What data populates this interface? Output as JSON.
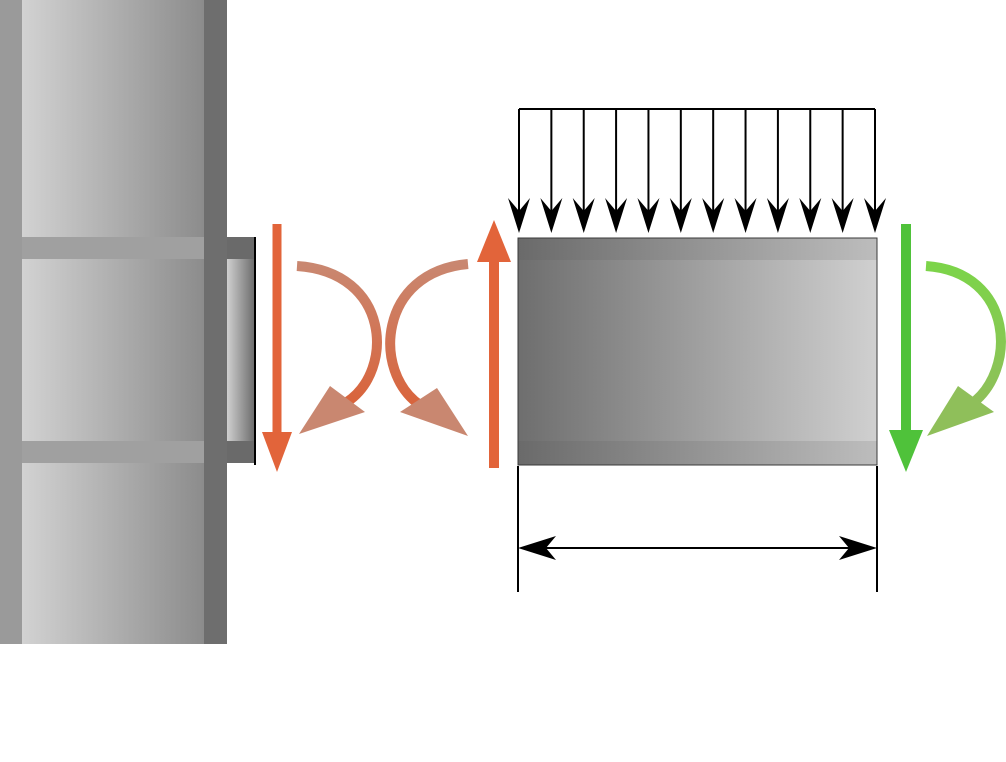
{
  "diagram": {
    "distributed_load_arrow_count": 12,
    "colors": {
      "background": "#ffffff",
      "column_flange": "#9a9a9a",
      "column_web_light": "#d2d2d2",
      "column_web_dark": "#8c8c8c",
      "column_edge_dark": "#6e6e6e",
      "stiffener": "#a0a0a0",
      "beam_flange_dark": "#6a6a6a",
      "beam_flange_light": "#bdbdbd",
      "beam_web_dark": "#6e6e6e",
      "beam_web_light": "#d0d0d0",
      "reaction_orange": "#e2643a",
      "moment_orange": "#d9643c",
      "moment_orange_faded": "#c98770",
      "reaction_green": "#4fc23a",
      "moment_green": "#7cd449",
      "moment_green_faded": "#8fbf5a",
      "load_arrow": "#000000",
      "dimension_line": "#000000"
    },
    "icons": {
      "support_shear": "arrow-down-icon",
      "support_moment": "curved-arrow-cw-icon",
      "beam_end_moment": "curved-arrow-ccw-icon",
      "beam_end_shear": "arrow-up-icon",
      "far_end_shear": "arrow-down-icon",
      "far_end_moment": "curved-arrow-cw-icon"
    }
  }
}
